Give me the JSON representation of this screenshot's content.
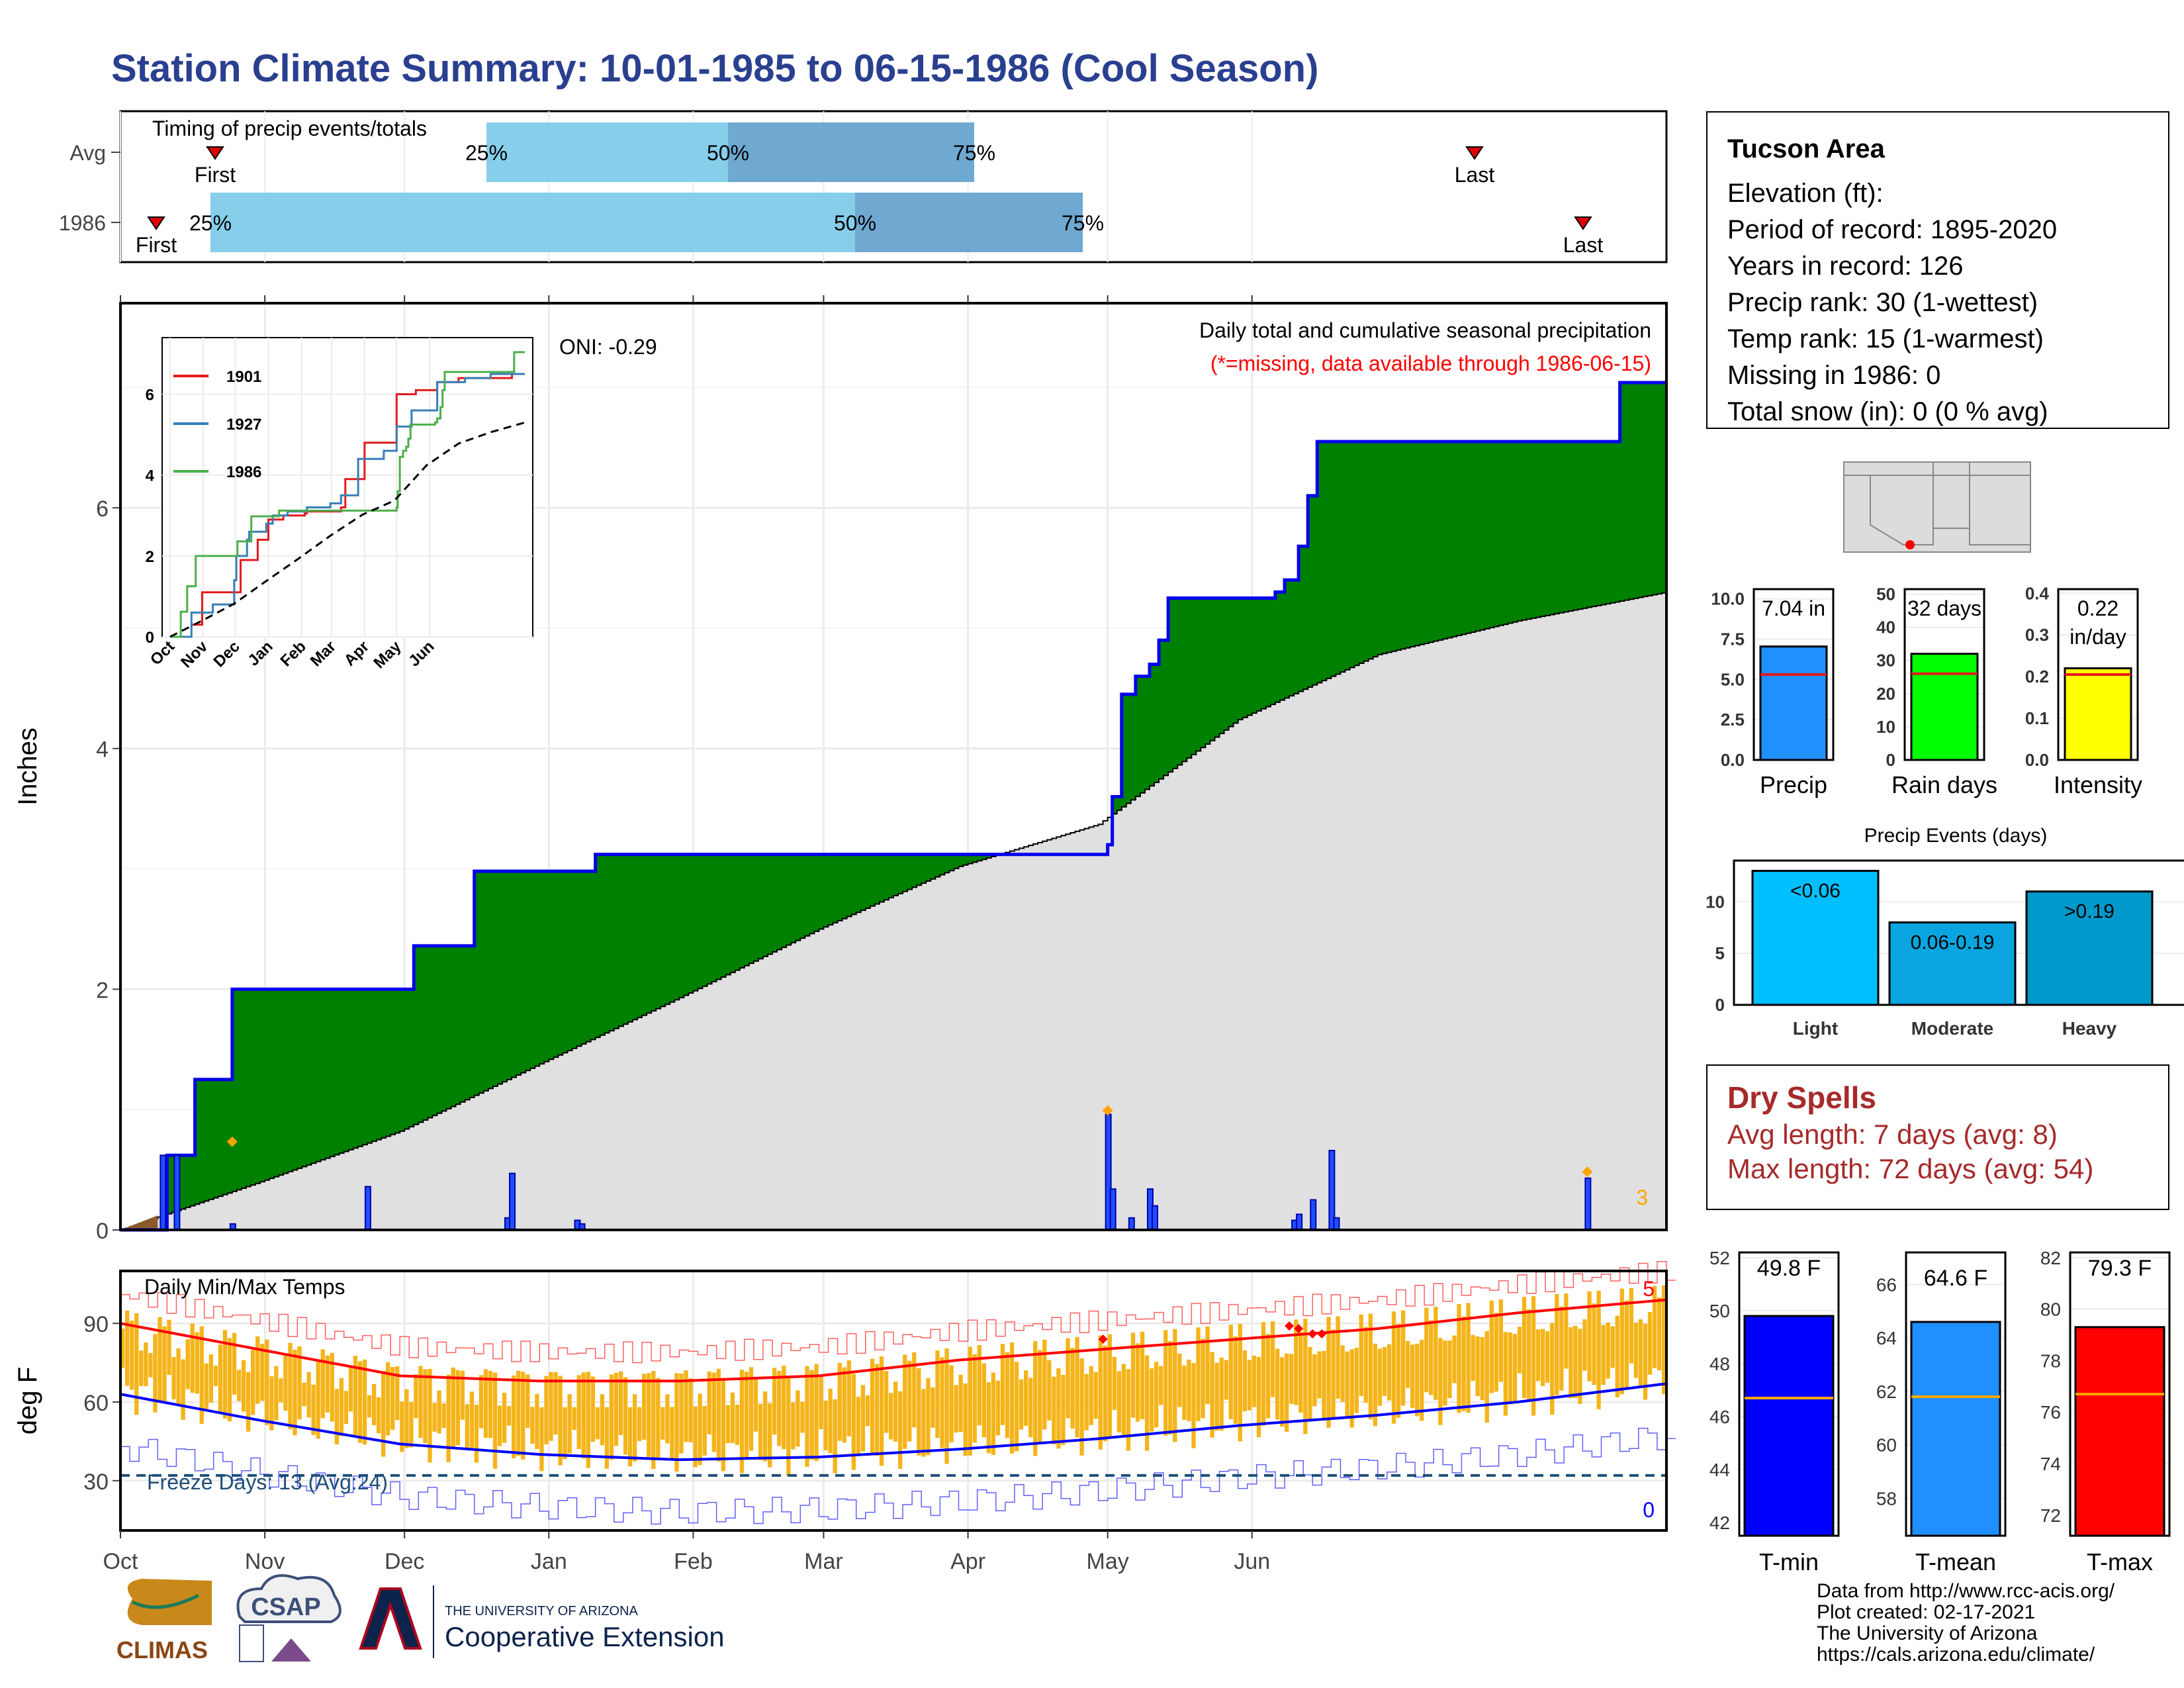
{
  "title": "Station Climate Summary: 10-01-1985 to 06-15-1986 (Cool Season)",
  "timing": {
    "label": "Timing of precip events/totals",
    "rows": [
      {
        "name": "Avg",
        "first": "First",
        "last": "Last",
        "p25": "25%",
        "p50": "50%",
        "p75": "75%"
      },
      {
        "name": "1986",
        "first": "First",
        "last": "Last",
        "p25": "25%",
        "p50": "50%",
        "p75": "75%"
      }
    ]
  },
  "station": {
    "name": "Tucson Area",
    "elevation": "Elevation (ft):",
    "period": "Period of record: 1895-2020",
    "years": "Years in record: 126",
    "precip_rank": "Precip rank: 30 (1-wettest)",
    "temp_rank": "Temp rank: 15 (1-warmest)",
    "missing": "Missing in 1986: 0",
    "snow": "Total snow (in): 0 (0 % avg)"
  },
  "precip_panel": {
    "label1": "Daily total and cumulative seasonal precipitation",
    "label2": "(*=missing, data available through 1986-06-15)",
    "oni": "ONI: -0.29",
    "ylabel": "Inches",
    "corner_count": "3"
  },
  "temp_panel": {
    "label": "Daily Min/Max Temps",
    "ylabel": "deg F",
    "freeze": "Freeze Days: 13 (Avg:24)",
    "count_hot": "5",
    "count_cold": "0"
  },
  "months": [
    "Oct",
    "Nov",
    "Dec",
    "Jan",
    "Feb",
    "Mar",
    "Apr",
    "May",
    "Jun"
  ],
  "inset": {
    "legend": [
      "1901",
      "1927",
      "1986"
    ],
    "colors": [
      "#e41a1c",
      "#377eb8",
      "#4daf4a"
    ],
    "months": [
      "Oct",
      "Nov",
      "Dec",
      "Jan",
      "Feb",
      "Mar",
      "Apr",
      "May",
      "Jun"
    ]
  },
  "colors": {
    "green": "#008000",
    "blue": "#0000ee",
    "grey": "#e0e0e0",
    "orange": "#f4b41a",
    "title": "#2a3f8f",
    "dry": "#a62a2a"
  },
  "summary_bars": {
    "precip": {
      "label": "Precip",
      "value_label": "7.04 in",
      "value": 7.04,
      "avg": 5.3,
      "color": "#1e90ff"
    },
    "raindays": {
      "label": "Rain days",
      "value_label": "32 days",
      "value": 32,
      "avg": 26,
      "color": "#00ff00"
    },
    "intensity": {
      "label": "Intensity",
      "value_label": "0.22 in/day",
      "value": 0.22,
      "avg": 0.205,
      "color": "#ffff00"
    }
  },
  "events": {
    "title": "Precip Events (days)",
    "bars": [
      {
        "label": "Light",
        "text": "<0.06",
        "value": 13,
        "color": "#00bfff"
      },
      {
        "label": "Moderate",
        "text": "0.06-0.19",
        "value": 8,
        "color": "#0aa5e0"
      },
      {
        "label": "Heavy",
        "text": ">0.19",
        "value": 11,
        "color": "#0099cc"
      }
    ]
  },
  "dry_spells": {
    "title": "Dry Spells",
    "avg": "Avg length: 7 days (avg: 8)",
    "max": "Max length: 72 days (avg: 54)"
  },
  "temp_bars": [
    {
      "label": "T-min",
      "value_label": "49.8 F",
      "value": 49.8,
      "avg": 46.7,
      "color": "#0000ff",
      "ylim": [
        41.5,
        52.2
      ],
      "ticks": [
        42,
        44,
        46,
        48,
        50,
        52
      ]
    },
    {
      "label": "T-mean",
      "value_label": "64.6 F",
      "value": 64.6,
      "avg": 61.8,
      "color": "#1e90ff",
      "ylim": [
        56.6,
        67.2
      ],
      "ticks": [
        58,
        60,
        62,
        64,
        66
      ]
    },
    {
      "label": "T-max",
      "value_label": "79.3 F",
      "value": 79.3,
      "avg": 76.7,
      "color": "#ff0000",
      "ylim": [
        71.2,
        82.2
      ],
      "ticks": [
        72,
        74,
        76,
        78,
        80,
        82
      ]
    }
  ],
  "credits": [
    "Data from http://www.rcc-acis.org/",
    "Plot created: 02-17-2021",
    "The University of Arizona",
    "https://cals.arizona.edu/climate/"
  ],
  "logos": {
    "climas": "CLIMAS",
    "csap": "CSAP",
    "ua_small": "THE UNIVERSITY OF ARIZONA",
    "ua_big": "Cooperative Extension"
  },
  "chart_data": [
    {
      "type": "area",
      "title": "Daily total and cumulative seasonal precipitation",
      "ylabel": "Inches",
      "ylim": [
        0,
        7.7
      ],
      "series": [
        {
          "name": "1986",
          "x": [
            0,
            10,
            16,
            24,
            63,
            76,
            78,
            102,
            212,
            213,
            215,
            218,
            221,
            223,
            225,
            227,
            248,
            250,
            253,
            255,
            257,
            320,
            322,
            332
          ],
          "values": [
            0,
            0.62,
            1.25,
            2.0,
            2.36,
            2.98,
            2.98,
            3.12,
            3.2,
            3.6,
            4.45,
            4.6,
            4.7,
            4.9,
            5.25,
            5.25,
            5.3,
            5.4,
            5.68,
            6.1,
            6.55,
            6.55,
            7.04,
            7.04
          ]
        },
        {
          "name": "Avg",
          "x": [
            0,
            30,
            60,
            90,
            120,
            150,
            180,
            210,
            240,
            270,
            300,
            332
          ],
          "values": [
            0,
            0.4,
            0.82,
            1.38,
            1.93,
            2.5,
            3.02,
            3.37,
            4.24,
            4.78,
            5.06,
            5.3
          ]
        }
      ],
      "daily_precip": {
        "x": [
          9,
          12,
          24,
          53,
          83,
          84,
          98,
          99,
          212,
          213,
          217,
          221,
          222,
          252,
          253,
          256,
          260,
          261,
          315
        ],
        "values": [
          0.62,
          0.62,
          0.05,
          0.36,
          0.1,
          0.47,
          0.08,
          0.05,
          0.96,
          0.34,
          0.1,
          0.34,
          0.2,
          0.08,
          0.13,
          0.25,
          0.66,
          0.1,
          0.43
        ]
      }
    },
    {
      "type": "line",
      "title": "Daily Min/Max Temps",
      "ylabel": "deg F",
      "ylim": [
        11,
        110
      ],
      "series": [
        {
          "name": "Avg max",
          "x": [
            0,
            30,
            60,
            90,
            120,
            150,
            180,
            210,
            240,
            270,
            300,
            332
          ],
          "values": [
            90,
            80,
            70,
            68,
            68,
            70,
            76,
            80,
            84,
            88,
            94,
            99
          ]
        },
        {
          "name": "Avg min",
          "x": [
            0,
            30,
            60,
            90,
            120,
            150,
            180,
            210,
            240,
            270,
            300,
            332
          ],
          "values": [
            63,
            53,
            44,
            40,
            38,
            39,
            42,
            46,
            51,
            55,
            60,
            67
          ]
        }
      ],
      "freeze_line": 32
    }
  ]
}
